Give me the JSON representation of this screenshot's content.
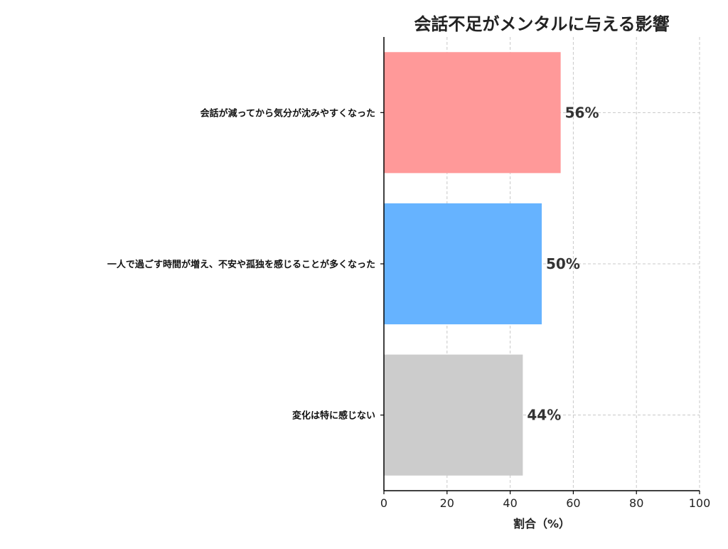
{
  "chart_data": {
    "type": "bar",
    "orientation": "horizontal",
    "title": "会話不足がメンタルに与える影響",
    "xlabel": "割合（%）",
    "ylabel": "",
    "xlim": [
      0,
      100
    ],
    "x_ticks": [
      0,
      20,
      40,
      60,
      80,
      100
    ],
    "grid": true,
    "categories": [
      "変化は特に感じない",
      "一人で過ごす時間が増え、不安や孤独を感じることが多くなった",
      "会話が減ってから気分が沈みやすくなった"
    ],
    "values": [
      44,
      50,
      56
    ],
    "value_labels": [
      "44%",
      "50%",
      "56%"
    ],
    "colors": [
      "#cccccc",
      "#66b3ff",
      "#ff9999"
    ]
  }
}
